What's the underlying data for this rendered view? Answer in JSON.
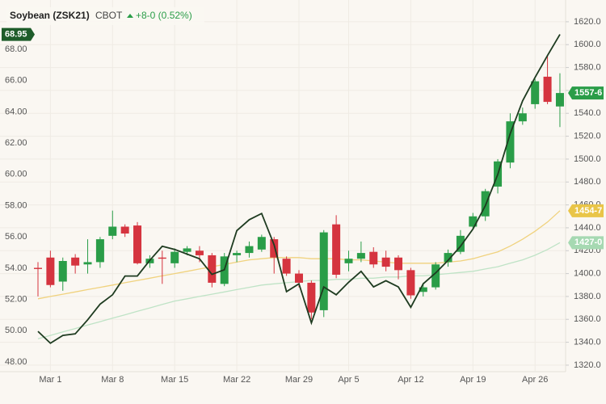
{
  "chart_data": {
    "type": "candlestick",
    "title": "Soybean (ZSK21)",
    "exchange": "CBOT",
    "change": "+8-0 (0.52%)",
    "categories": [
      null,
      "Mar 1",
      null,
      null,
      null,
      null,
      "Mar 8",
      null,
      null,
      null,
      null,
      "Mar 15",
      null,
      null,
      null,
      null,
      "Mar 22",
      null,
      null,
      null,
      null,
      "Mar 29",
      null,
      null,
      null,
      "Apr 5",
      null,
      null,
      null,
      null,
      "Apr 12",
      null,
      null,
      null,
      null,
      "Apr 19",
      null,
      null,
      null,
      null,
      "Apr 26",
      null,
      null
    ],
    "open": [
      1405,
      1414,
      1393,
      1414,
      1408,
      1410,
      1433,
      1441,
      1442,
      1409,
      1414,
      1409,
      1419,
      1420,
      1416,
      1391,
      1416,
      1418,
      1421,
      1430,
      1413,
      1400,
      1392,
      1368,
      1443,
      1409,
      1413,
      1419,
      1414,
      1414,
      1403,
      1384,
      1388,
      1410,
      1419,
      1441,
      1450,
      1476,
      1497,
      1533,
      1548,
      1572,
      1546
    ],
    "high": [
      1410,
      1420,
      1414,
      1417,
      1430,
      1432,
      1455,
      1443,
      1445,
      1416,
      1420,
      1422,
      1424,
      1424,
      1418,
      1418,
      1420,
      1428,
      1434,
      1432,
      1415,
      1403,
      1394,
      1438,
      1451,
      1420,
      1428,
      1423,
      1420,
      1416,
      1405,
      1392,
      1410,
      1421,
      1438,
      1453,
      1474,
      1500,
      1540,
      1545,
      1570,
      1590,
      1575
    ],
    "low": [
      1380,
      1388,
      1385,
      1400,
      1400,
      1405,
      1430,
      1432,
      1408,
      1405,
      1391,
      1405,
      1416,
      1410,
      1388,
      1389,
      1410,
      1414,
      1419,
      1400,
      1398,
      1388,
      1360,
      1362,
      1396,
      1402,
      1410,
      1405,
      1402,
      1395,
      1378,
      1380,
      1386,
      1406,
      1417,
      1439,
      1446,
      1470,
      1492,
      1530,
      1544,
      1548,
      1528
    ],
    "close": [
      1404,
      1390,
      1411,
      1407,
      1410,
      1430,
      1441,
      1435,
      1409,
      1413,
      1413,
      1419,
      1422,
      1416,
      1392,
      1415,
      1418,
      1424,
      1432,
      1414,
      1400,
      1392,
      1366,
      1436,
      1399,
      1413,
      1418,
      1408,
      1406,
      1403,
      1381,
      1388,
      1408,
      1418,
      1433,
      1450,
      1472,
      1498,
      1533,
      1540,
      1568,
      1550,
      1557.75
    ],
    "last_close_label": "1557-6",
    "up_color": "#2a9d48",
    "down_color": "#d5343f",
    "series": [
      {
        "color": "#1e3b20",
        "axis": "y",
        "value_label": "68.95",
        "label_color": "#1e5c2a",
        "values": [
          49.96,
          49.2,
          49.7,
          49.8,
          50.7,
          51.7,
          52.3,
          53.5,
          53.5,
          54.5,
          55.4,
          55.2,
          54.9,
          54.6,
          53.6,
          53.9,
          56.4,
          57.1,
          57.5,
          55.5,
          52.5,
          53.0,
          50.5,
          52.8,
          52.3,
          53.1,
          53.8,
          52.8,
          53.2,
          52.8,
          51.5,
          53.0,
          53.7,
          54.5,
          55.4,
          56.5,
          58.0,
          60.0,
          62.6,
          64.7,
          66.2,
          67.6,
          68.95
        ]
      },
      {
        "color": "#f0d27e",
        "axis": "y2",
        "value_label": "1454-7",
        "label_color": "#e9c548",
        "values": [
          1378,
          1380,
          1382,
          1384,
          1386,
          1388,
          1390,
          1392,
          1394,
          1396,
          1398,
          1400,
          1402,
          1404,
          1406,
          1408,
          1410,
          1412,
          1413,
          1414,
          1414,
          1414,
          1413,
          1413,
          1413,
          1412,
          1412,
          1411,
          1410,
          1409,
          1409,
          1409,
          1409,
          1410,
          1411,
          1413,
          1416,
          1419,
          1424,
          1430,
          1437,
          1445,
          1454.875
        ]
      },
      {
        "color": "#bfe3c6",
        "axis": "y2",
        "value_label": "1427-0",
        "label_color": "#a6d9b2",
        "values": [
          1343,
          1346,
          1349,
          1352,
          1355,
          1358,
          1361,
          1364,
          1367,
          1370,
          1373,
          1376,
          1378,
          1380,
          1382,
          1384,
          1386,
          1388,
          1390,
          1391,
          1392,
          1393,
          1394,
          1394,
          1395,
          1395,
          1396,
          1396,
          1397,
          1397,
          1398,
          1398,
          1399,
          1400,
          1401,
          1402,
          1404,
          1406,
          1409,
          1412,
          1416,
          1421,
          1427
        ]
      }
    ],
    "ylim": [
      47.38,
      71.15
    ],
    "yticks": [
      {
        "value": 48,
        "label": "48.00"
      },
      {
        "value": 50,
        "label": "50.00"
      },
      {
        "value": 52,
        "label": "52.00"
      },
      {
        "value": 54,
        "label": "54.00"
      },
      {
        "value": 56,
        "label": "56.00"
      },
      {
        "value": 58,
        "label": "58.00"
      },
      {
        "value": 60,
        "label": "60.00"
      },
      {
        "value": 62,
        "label": "62.00"
      },
      {
        "value": 64,
        "label": "64.00"
      },
      {
        "value": 66,
        "label": "66.00"
      },
      {
        "value": 68,
        "label": "68.00"
      }
    ],
    "y2lim": [
      1314.3,
      1639
    ],
    "y2ticks": [
      {
        "value": 1320,
        "label": "1320.0"
      },
      {
        "value": 1340,
        "label": "1340.0"
      },
      {
        "value": 1360,
        "label": "1360.0"
      },
      {
        "value": 1380,
        "label": "1380.0"
      },
      {
        "value": 1400,
        "label": "1400.0"
      },
      {
        "value": 1420,
        "label": "1420.0"
      },
      {
        "value": 1440,
        "label": "1440.0"
      },
      {
        "value": 1460,
        "label": "1460.0"
      },
      {
        "value": 1480,
        "label": "1480.0"
      },
      {
        "value": 1500,
        "label": "1500.0"
      },
      {
        "value": 1520,
        "label": "1520.0"
      },
      {
        "value": 1540,
        "label": "1540.0"
      },
      {
        "value": 1560,
        "label": "1560.0"
      },
      {
        "value": 1580,
        "label": "1580.0"
      },
      {
        "value": 1600,
        "label": "1600.0"
      },
      {
        "value": 1620,
        "label": "1620.0"
      }
    ],
    "grid": true
  }
}
